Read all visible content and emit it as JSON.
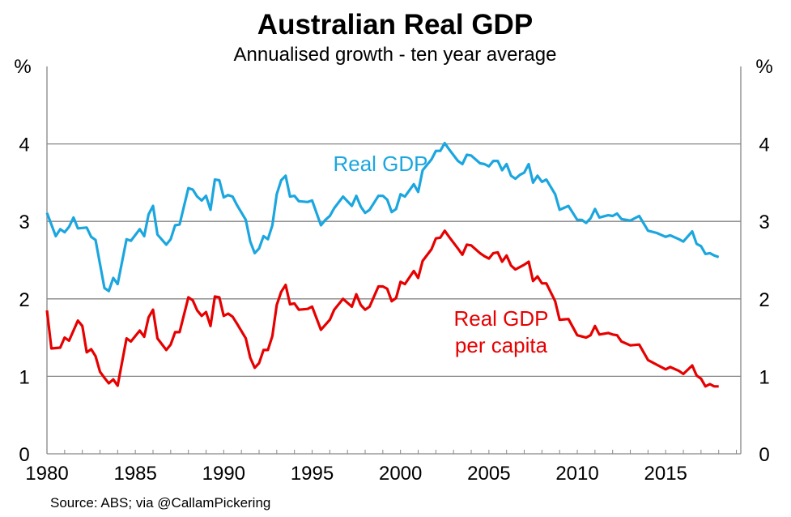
{
  "chart_data": {
    "type": "line",
    "title": "Australian Real GDP",
    "subtitle": "Annualised growth - ten year average",
    "ylabel_left": "%",
    "ylabel_right": "%",
    "source": "Source: ABS; via @CallamPickering",
    "xlim": [
      1980,
      2019.25
    ],
    "ylim": [
      0,
      5
    ],
    "x_ticks": [
      1980,
      1985,
      1990,
      1995,
      2000,
      2005,
      2010,
      2015
    ],
    "y_ticks": [
      0,
      1,
      2,
      3,
      4
    ],
    "grid": true,
    "colors": {
      "real_gdp": "#1ba6df",
      "per_capita": "#e60000",
      "grid": "#868686"
    },
    "series": [
      {
        "name": "Real GDP",
        "label_lines": [
          "Real GDP"
        ],
        "color": "#1ba6df",
        "points": [
          [
            1980,
            3.11
          ],
          [
            1980.5,
            2.81
          ],
          [
            1980.75,
            2.9
          ],
          [
            1981,
            2.86
          ],
          [
            1981.25,
            2.93
          ],
          [
            1981.5,
            3.05
          ],
          [
            1981.75,
            2.91
          ],
          [
            1982.25,
            2.92
          ],
          [
            1982.5,
            2.8
          ],
          [
            1982.75,
            2.76
          ],
          [
            1983.25,
            2.14
          ],
          [
            1983.5,
            2.1
          ],
          [
            1983.75,
            2.27
          ],
          [
            1984,
            2.19
          ],
          [
            1984.5,
            2.77
          ],
          [
            1984.75,
            2.75
          ],
          [
            1985.25,
            2.9
          ],
          [
            1985.5,
            2.81
          ],
          [
            1985.75,
            3.09
          ],
          [
            1986,
            3.2
          ],
          [
            1986.25,
            2.83
          ],
          [
            1986.75,
            2.7
          ],
          [
            1987,
            2.77
          ],
          [
            1987.25,
            2.95
          ],
          [
            1987.5,
            2.96
          ],
          [
            1988,
            3.43
          ],
          [
            1988.25,
            3.41
          ],
          [
            1988.5,
            3.32
          ],
          [
            1988.75,
            3.27
          ],
          [
            1989,
            3.33
          ],
          [
            1989.25,
            3.15
          ],
          [
            1989.5,
            3.54
          ],
          [
            1989.75,
            3.53
          ],
          [
            1990,
            3.31
          ],
          [
            1990.25,
            3.34
          ],
          [
            1990.5,
            3.32
          ],
          [
            1990.75,
            3.21
          ],
          [
            1991.25,
            3.02
          ],
          [
            1991.5,
            2.74
          ],
          [
            1991.75,
            2.59
          ],
          [
            1992,
            2.65
          ],
          [
            1992.25,
            2.81
          ],
          [
            1992.5,
            2.77
          ],
          [
            1992.75,
            2.95
          ],
          [
            1993,
            3.35
          ],
          [
            1993.25,
            3.53
          ],
          [
            1993.5,
            3.59
          ],
          [
            1993.75,
            3.32
          ],
          [
            1994,
            3.33
          ],
          [
            1994.25,
            3.26
          ],
          [
            1994.75,
            3.25
          ],
          [
            1995,
            3.27
          ],
          [
            1995.5,
            2.95
          ],
          [
            1995.75,
            3.02
          ],
          [
            1996,
            3.07
          ],
          [
            1996.25,
            3.17
          ],
          [
            1996.75,
            3.32
          ],
          [
            1997.25,
            3.2
          ],
          [
            1997.5,
            3.33
          ],
          [
            1997.75,
            3.19
          ],
          [
            1998,
            3.11
          ],
          [
            1998.25,
            3.15
          ],
          [
            1998.75,
            3.33
          ],
          [
            1999,
            3.33
          ],
          [
            1999.25,
            3.28
          ],
          [
            1999.5,
            3.12
          ],
          [
            1999.75,
            3.16
          ],
          [
            2000,
            3.35
          ],
          [
            2000.25,
            3.32
          ],
          [
            2000.75,
            3.48
          ],
          [
            2001,
            3.38
          ],
          [
            2001.25,
            3.66
          ],
          [
            2001.75,
            3.8
          ],
          [
            2002,
            3.91
          ],
          [
            2002.25,
            3.91
          ],
          [
            2002.5,
            4.01
          ],
          [
            2002.75,
            3.93
          ],
          [
            2003.25,
            3.78
          ],
          [
            2003.5,
            3.74
          ],
          [
            2003.75,
            3.86
          ],
          [
            2004,
            3.85
          ],
          [
            2004.5,
            3.75
          ],
          [
            2004.75,
            3.74
          ],
          [
            2005,
            3.71
          ],
          [
            2005.25,
            3.78
          ],
          [
            2005.5,
            3.78
          ],
          [
            2005.75,
            3.66
          ],
          [
            2006,
            3.74
          ],
          [
            2006.25,
            3.59
          ],
          [
            2006.5,
            3.55
          ],
          [
            2006.75,
            3.6
          ],
          [
            2007,
            3.63
          ],
          [
            2007.25,
            3.74
          ],
          [
            2007.5,
            3.5
          ],
          [
            2007.75,
            3.59
          ],
          [
            2008,
            3.51
          ],
          [
            2008.25,
            3.54
          ],
          [
            2008.75,
            3.35
          ],
          [
            2009,
            3.15
          ],
          [
            2009.5,
            3.2
          ],
          [
            2010,
            3.02
          ],
          [
            2010.25,
            3.02
          ],
          [
            2010.5,
            2.98
          ],
          [
            2010.75,
            3.04
          ],
          [
            2011,
            3.16
          ],
          [
            2011.25,
            3.05
          ],
          [
            2011.75,
            3.08
          ],
          [
            2012,
            3.07
          ],
          [
            2012.25,
            3.1
          ],
          [
            2012.5,
            3.03
          ],
          [
            2013,
            3.01
          ],
          [
            2013.5,
            3.07
          ],
          [
            2014,
            2.88
          ],
          [
            2014.5,
            2.85
          ],
          [
            2015,
            2.8
          ],
          [
            2015.25,
            2.82
          ],
          [
            2015.75,
            2.77
          ],
          [
            2016,
            2.74
          ],
          [
            2016.5,
            2.87
          ],
          [
            2016.75,
            2.71
          ],
          [
            2017,
            2.68
          ],
          [
            2017.25,
            2.58
          ],
          [
            2017.5,
            2.59
          ],
          [
            2017.75,
            2.56
          ],
          [
            2018,
            2.54
          ]
        ]
      },
      {
        "name": "Real GDP per capita",
        "label_lines": [
          "Real GDP",
          "per capita"
        ],
        "color": "#e60000",
        "points": [
          [
            1980,
            1.85
          ],
          [
            1980.25,
            1.36
          ],
          [
            1980.75,
            1.37
          ],
          [
            1981,
            1.5
          ],
          [
            1981.25,
            1.46
          ],
          [
            1981.75,
            1.72
          ],
          [
            1982,
            1.65
          ],
          [
            1982.25,
            1.31
          ],
          [
            1982.5,
            1.35
          ],
          [
            1982.75,
            1.26
          ],
          [
            1983,
            1.06
          ],
          [
            1983.25,
            0.98
          ],
          [
            1983.5,
            0.91
          ],
          [
            1983.75,
            0.96
          ],
          [
            1984,
            0.88
          ],
          [
            1984.5,
            1.49
          ],
          [
            1984.75,
            1.45
          ],
          [
            1985.25,
            1.59
          ],
          [
            1985.5,
            1.51
          ],
          [
            1985.75,
            1.76
          ],
          [
            1986,
            1.86
          ],
          [
            1986.25,
            1.49
          ],
          [
            1986.75,
            1.34
          ],
          [
            1987,
            1.41
          ],
          [
            1987.25,
            1.57
          ],
          [
            1987.5,
            1.57
          ],
          [
            1988,
            2.02
          ],
          [
            1988.25,
            1.98
          ],
          [
            1988.5,
            1.85
          ],
          [
            1988.75,
            1.78
          ],
          [
            1989,
            1.83
          ],
          [
            1989.25,
            1.65
          ],
          [
            1989.5,
            2.03
          ],
          [
            1989.75,
            2.02
          ],
          [
            1990,
            1.78
          ],
          [
            1990.25,
            1.81
          ],
          [
            1990.5,
            1.77
          ],
          [
            1990.75,
            1.68
          ],
          [
            1991.25,
            1.49
          ],
          [
            1991.5,
            1.24
          ],
          [
            1991.75,
            1.11
          ],
          [
            1992,
            1.17
          ],
          [
            1992.25,
            1.34
          ],
          [
            1992.5,
            1.34
          ],
          [
            1992.75,
            1.52
          ],
          [
            1993,
            1.92
          ],
          [
            1993.25,
            2.09
          ],
          [
            1993.5,
            2.18
          ],
          [
            1993.75,
            1.93
          ],
          [
            1994,
            1.94
          ],
          [
            1994.25,
            1.86
          ],
          [
            1994.75,
            1.87
          ],
          [
            1995,
            1.9
          ],
          [
            1995.5,
            1.6
          ],
          [
            1996,
            1.73
          ],
          [
            1996.25,
            1.86
          ],
          [
            1996.75,
            2.0
          ],
          [
            1997.25,
            1.9
          ],
          [
            1997.5,
            2.06
          ],
          [
            1997.75,
            1.92
          ],
          [
            1998,
            1.86
          ],
          [
            1998.25,
            1.9
          ],
          [
            1998.75,
            2.16
          ],
          [
            1999,
            2.16
          ],
          [
            1999.25,
            2.13
          ],
          [
            1999.5,
            1.97
          ],
          [
            1999.75,
            2.01
          ],
          [
            2000,
            2.22
          ],
          [
            2000.25,
            2.19
          ],
          [
            2000.75,
            2.36
          ],
          [
            2001,
            2.27
          ],
          [
            2001.25,
            2.49
          ],
          [
            2001.75,
            2.64
          ],
          [
            2002,
            2.78
          ],
          [
            2002.25,
            2.79
          ],
          [
            2002.5,
            2.88
          ],
          [
            2002.75,
            2.8
          ],
          [
            2003.25,
            2.65
          ],
          [
            2003.5,
            2.57
          ],
          [
            2003.75,
            2.7
          ],
          [
            2004,
            2.69
          ],
          [
            2004.5,
            2.59
          ],
          [
            2004.75,
            2.55
          ],
          [
            2005,
            2.52
          ],
          [
            2005.25,
            2.59
          ],
          [
            2005.5,
            2.6
          ],
          [
            2005.75,
            2.48
          ],
          [
            2006,
            2.56
          ],
          [
            2006.25,
            2.43
          ],
          [
            2006.5,
            2.38
          ],
          [
            2007,
            2.44
          ],
          [
            2007.25,
            2.48
          ],
          [
            2007.5,
            2.23
          ],
          [
            2007.75,
            2.29
          ],
          [
            2008,
            2.2
          ],
          [
            2008.25,
            2.2
          ],
          [
            2008.75,
            1.97
          ],
          [
            2009,
            1.73
          ],
          [
            2009.5,
            1.74
          ],
          [
            2010,
            1.53
          ],
          [
            2010.5,
            1.5
          ],
          [
            2010.75,
            1.53
          ],
          [
            2011,
            1.65
          ],
          [
            2011.25,
            1.54
          ],
          [
            2011.75,
            1.56
          ],
          [
            2012,
            1.54
          ],
          [
            2012.25,
            1.53
          ],
          [
            2012.5,
            1.45
          ],
          [
            2013,
            1.4
          ],
          [
            2013.5,
            1.41
          ],
          [
            2014,
            1.21
          ],
          [
            2014.5,
            1.15
          ],
          [
            2015,
            1.09
          ],
          [
            2015.25,
            1.12
          ],
          [
            2015.75,
            1.07
          ],
          [
            2016,
            1.03
          ],
          [
            2016.5,
            1.14
          ],
          [
            2016.75,
            1.01
          ],
          [
            2017,
            0.97
          ],
          [
            2017.25,
            0.87
          ],
          [
            2017.5,
            0.9
          ],
          [
            2017.75,
            0.87
          ],
          [
            2018,
            0.87
          ]
        ]
      }
    ]
  }
}
